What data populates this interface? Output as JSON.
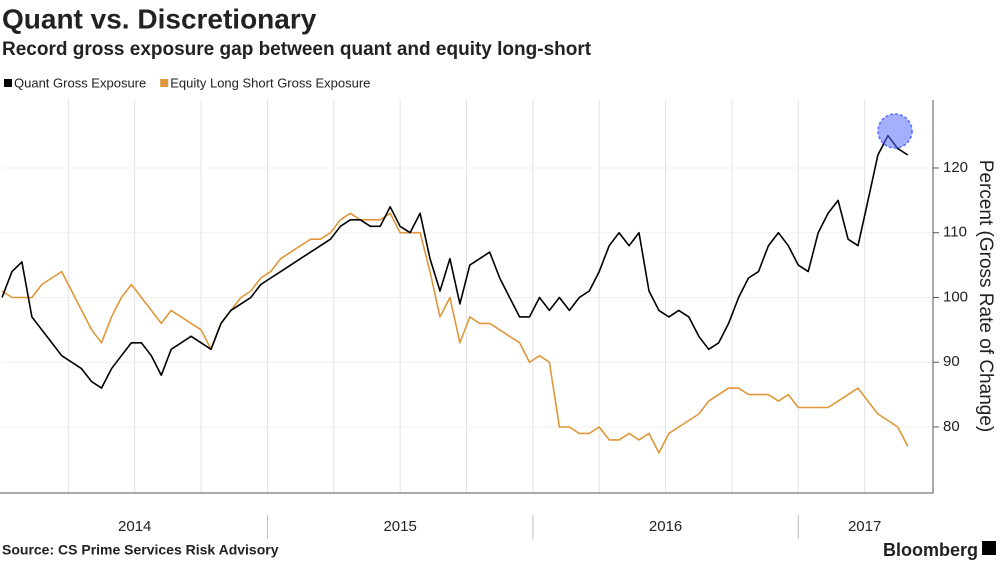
{
  "chart_data": {
    "type": "line",
    "title": "Quant vs. Discretionary",
    "subtitle": "Record gross exposure gap between quant and equity long-short",
    "y_axis_label": "Percent (Gross Rate of Change)",
    "source": "Source: CS Prime Services Risk Advisory",
    "brand": "Bloomberg",
    "x": [
      2014,
      2014.0375,
      2014.075,
      2014.1125,
      2014.15,
      2014.1875,
      2014.225,
      2014.2625,
      2014.3,
      2014.3375,
      2014.375,
      2014.4125,
      2014.45,
      2014.4875,
      2014.525,
      2014.5625,
      2014.6,
      2014.6375,
      2014.675,
      2014.7125,
      2014.75,
      2014.7875,
      2014.825,
      2014.8625,
      2014.9,
      2014.9375,
      2014.975,
      2015.0125,
      2015.05,
      2015.0875,
      2015.125,
      2015.1625,
      2015.2,
      2015.2375,
      2015.275,
      2015.3125,
      2015.35,
      2015.3875,
      2015.425,
      2015.4625,
      2015.5,
      2015.5375,
      2015.575,
      2015.6125,
      2015.65,
      2015.6875,
      2015.725,
      2015.7625,
      2015.8,
      2015.8375,
      2015.875,
      2015.9125,
      2015.95,
      2015.9875,
      2016.025,
      2016.0625,
      2016.1,
      2016.1375,
      2016.175,
      2016.2125,
      2016.25,
      2016.2875,
      2016.325,
      2016.3625,
      2016.4,
      2016.4375,
      2016.475,
      2016.5125,
      2016.55,
      2016.5875,
      2016.625,
      2016.6625,
      2016.7,
      2016.7375,
      2016.775,
      2016.8125,
      2016.85,
      2016.8875,
      2016.925,
      2016.9625,
      2017,
      2017.0375,
      2017.075,
      2017.1125,
      2017.15,
      2017.1875,
      2017.225,
      2017.2625,
      2017.3,
      2017.3375,
      2017.375,
      2017.4125
    ],
    "series": [
      {
        "name": "Quant Gross Exposure",
        "color": "#000000",
        "values": [
          100,
          104,
          105.5,
          97,
          95,
          93,
          91,
          90,
          89,
          87,
          86,
          89,
          91,
          93,
          93,
          91,
          88,
          92,
          93,
          94,
          93,
          92,
          96,
          98,
          99,
          100,
          102,
          103,
          104,
          105,
          106,
          107,
          108,
          109,
          111,
          112,
          112,
          111,
          111,
          114,
          111,
          110,
          113,
          106,
          101,
          106,
          99,
          105,
          106,
          107,
          103,
          100,
          97,
          97,
          100,
          98,
          100,
          98,
          100,
          101,
          104,
          108,
          110,
          108,
          110,
          101,
          98,
          97,
          98,
          97,
          94,
          92,
          93,
          96,
          100,
          103,
          104,
          108,
          110,
          108,
          105,
          104,
          110,
          113,
          115,
          109,
          108,
          115,
          122,
          125,
          123,
          122
        ]
      },
      {
        "name": "Equity Long Short Gross Exposure",
        "color": "#e0973a",
        "values": [
          101,
          100,
          100,
          100,
          102,
          103,
          104,
          101,
          98,
          95,
          93,
          97,
          100,
          102,
          100,
          98,
          96,
          98,
          97,
          96,
          95,
          92,
          96,
          98,
          100,
          101,
          103,
          104,
          106,
          107,
          108,
          109,
          109,
          110,
          112,
          113,
          112,
          112,
          112,
          113,
          110,
          110,
          110,
          104,
          97,
          100,
          93,
          97,
          96,
          96,
          95,
          94,
          93,
          90,
          91,
          90,
          80,
          80,
          79,
          79,
          80,
          78,
          78,
          79,
          78,
          79,
          76,
          79,
          80,
          81,
          82,
          84,
          85,
          86,
          86,
          85,
          85,
          85,
          84,
          85,
          83,
          83,
          83,
          83,
          84,
          85,
          86,
          84,
          82,
          81,
          80,
          77
        ]
      }
    ],
    "xlim": [
      2014,
      2017.5
    ],
    "xticks": [
      {
        "value": 2014.5,
        "label": "2014"
      },
      {
        "value": 2015.5,
        "label": "2015"
      },
      {
        "value": 2016.5,
        "label": "2016"
      },
      {
        "value": 2017.25,
        "label": "2017"
      }
    ],
    "x_separators": [
      2015,
      2016,
      2017
    ],
    "x_grid": [
      2014.25,
      2014.5,
      2014.75,
      2015,
      2015.25,
      2015.5,
      2015.75,
      2016,
      2016.25,
      2016.5,
      2016.75,
      2017,
      2017.25
    ],
    "ylim": [
      69.8,
      130.5
    ],
    "yticks": [
      80,
      90,
      100,
      110,
      120
    ],
    "grid": true
  }
}
